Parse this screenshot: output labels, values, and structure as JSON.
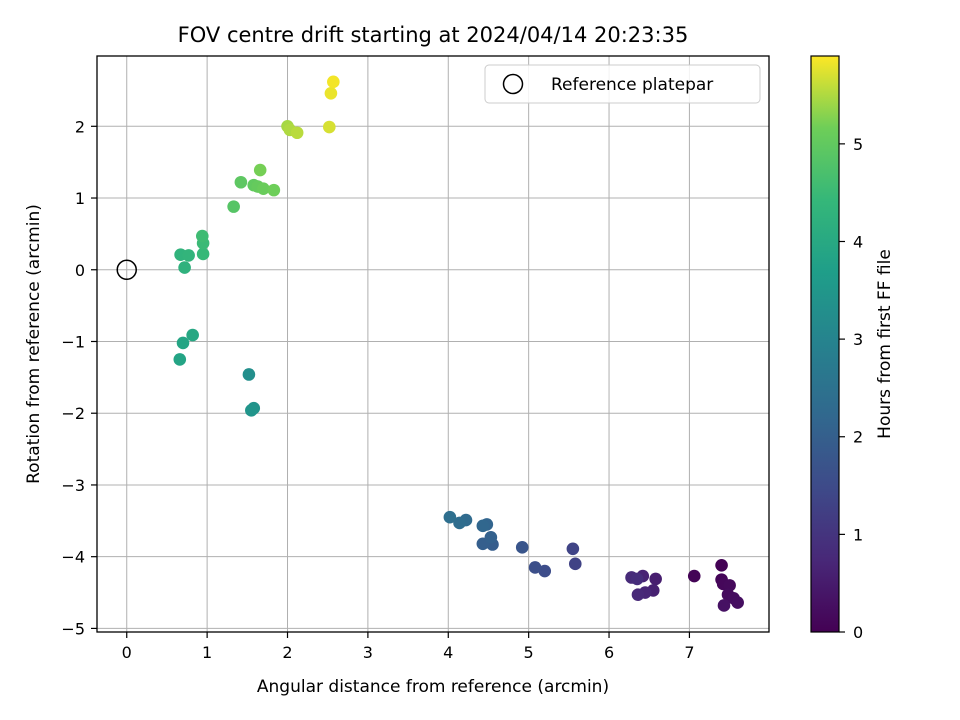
{
  "chart_data": {
    "type": "scatter",
    "title": "FOV centre drift starting at 2024/04/14 20:23:35",
    "xlabel": "Angular distance from reference (arcmin)",
    "ylabel": "Rotation from reference (arcmin)",
    "xlim": [
      -0.37,
      7.99
    ],
    "ylim": [
      -5.05,
      2.98
    ],
    "xticks": [
      0,
      1,
      2,
      3,
      4,
      5,
      6,
      7
    ],
    "yticks": [
      -5,
      -4,
      -3,
      -2,
      -1,
      0,
      1,
      2
    ],
    "grid": true,
    "legend": {
      "placement": "top-right",
      "entries": [
        "Reference platepar"
      ]
    },
    "reference_point": {
      "x": 0,
      "y": 0,
      "label": "Reference platepar"
    },
    "colorbar": {
      "label": "Hours from first FF file",
      "colormap": "viridis",
      "range": [
        0,
        5.9
      ],
      "ticks": [
        0,
        1,
        2,
        3,
        4,
        5
      ]
    },
    "points": [
      {
        "x": 7.4,
        "y": -4.12,
        "t": 0.02
      },
      {
        "x": 7.06,
        "y": -4.27,
        "t": 0.05
      },
      {
        "x": 7.4,
        "y": -4.32,
        "t": 0.08
      },
      {
        "x": 7.42,
        "y": -4.38,
        "t": 0.12
      },
      {
        "x": 7.5,
        "y": -4.4,
        "t": 0.15
      },
      {
        "x": 7.48,
        "y": -4.53,
        "t": 0.18
      },
      {
        "x": 7.55,
        "y": -4.58,
        "t": 0.22
      },
      {
        "x": 7.6,
        "y": -4.64,
        "t": 0.25
      },
      {
        "x": 7.43,
        "y": -4.68,
        "t": 0.3
      },
      {
        "x": 6.58,
        "y": -4.31,
        "t": 0.55
      },
      {
        "x": 6.55,
        "y": -4.47,
        "t": 0.6
      },
      {
        "x": 6.42,
        "y": -4.27,
        "t": 0.65
      },
      {
        "x": 6.45,
        "y": -4.5,
        "t": 0.7
      },
      {
        "x": 6.36,
        "y": -4.53,
        "t": 0.75
      },
      {
        "x": 6.28,
        "y": -4.29,
        "t": 0.8
      },
      {
        "x": 6.35,
        "y": -4.31,
        "t": 0.85
      },
      {
        "x": 5.58,
        "y": -4.1,
        "t": 1.3
      },
      {
        "x": 5.55,
        "y": -3.89,
        "t": 1.35
      },
      {
        "x": 5.2,
        "y": -4.2,
        "t": 1.55
      },
      {
        "x": 5.08,
        "y": -4.15,
        "t": 1.6
      },
      {
        "x": 4.92,
        "y": -3.87,
        "t": 1.75
      },
      {
        "x": 4.55,
        "y": -3.83,
        "t": 1.95
      },
      {
        "x": 4.43,
        "y": -3.82,
        "t": 2.0
      },
      {
        "x": 4.53,
        "y": -3.73,
        "t": 2.05
      },
      {
        "x": 4.48,
        "y": -3.55,
        "t": 2.15
      },
      {
        "x": 4.43,
        "y": -3.57,
        "t": 2.2
      },
      {
        "x": 4.22,
        "y": -3.49,
        "t": 2.3
      },
      {
        "x": 4.14,
        "y": -3.53,
        "t": 2.35
      },
      {
        "x": 4.02,
        "y": -3.45,
        "t": 2.4
      },
      {
        "x": 1.52,
        "y": -1.46,
        "t": 3.3
      },
      {
        "x": 1.58,
        "y": -1.93,
        "t": 3.4
      },
      {
        "x": 1.55,
        "y": -1.96,
        "t": 3.45
      },
      {
        "x": 0.66,
        "y": -1.25,
        "t": 3.85
      },
      {
        "x": 0.7,
        "y": -1.02,
        "t": 3.9
      },
      {
        "x": 0.82,
        "y": -0.91,
        "t": 3.95
      },
      {
        "x": 0.72,
        "y": 0.03,
        "t": 4.25
      },
      {
        "x": 0.67,
        "y": 0.21,
        "t": 4.3
      },
      {
        "x": 0.77,
        "y": 0.2,
        "t": 4.35
      },
      {
        "x": 0.95,
        "y": 0.22,
        "t": 4.45
      },
      {
        "x": 0.95,
        "y": 0.37,
        "t": 4.5
      },
      {
        "x": 0.94,
        "y": 0.47,
        "t": 4.55
      },
      {
        "x": 1.33,
        "y": 0.88,
        "t": 4.85
      },
      {
        "x": 1.42,
        "y": 1.22,
        "t": 4.95
      },
      {
        "x": 1.58,
        "y": 1.18,
        "t": 5.0
      },
      {
        "x": 1.63,
        "y": 1.16,
        "t": 5.05
      },
      {
        "x": 1.7,
        "y": 1.13,
        "t": 5.1
      },
      {
        "x": 1.83,
        "y": 1.11,
        "t": 5.15
      },
      {
        "x": 1.66,
        "y": 1.39,
        "t": 5.2
      },
      {
        "x": 2.0,
        "y": 2.0,
        "t": 5.45
      },
      {
        "x": 2.03,
        "y": 1.95,
        "t": 5.5
      },
      {
        "x": 2.12,
        "y": 1.91,
        "t": 5.55
      },
      {
        "x": 2.52,
        "y": 1.99,
        "t": 5.7
      },
      {
        "x": 2.54,
        "y": 2.46,
        "t": 5.8
      },
      {
        "x": 2.57,
        "y": 2.62,
        "t": 5.85
      }
    ]
  }
}
